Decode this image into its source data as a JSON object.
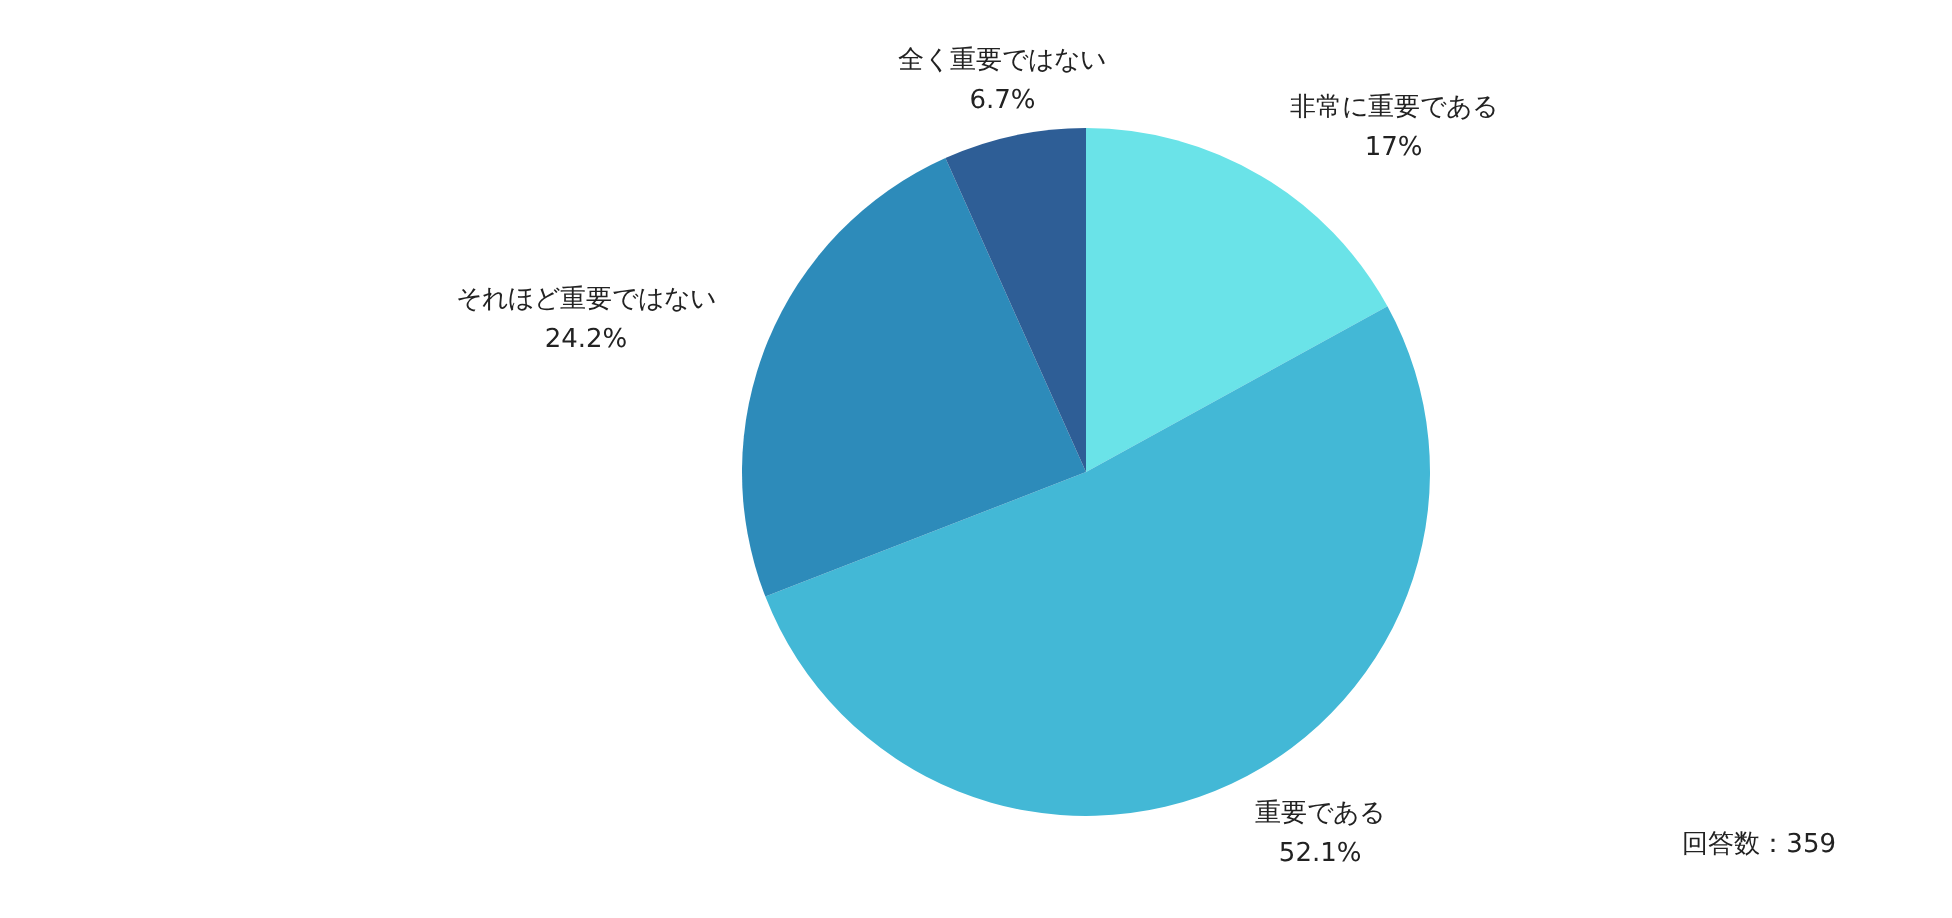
{
  "chart_data": {
    "type": "pie",
    "categories": [
      "非常に重要である",
      "重要である",
      "それほど重要ではない",
      "全く重要ではない"
    ],
    "values": [
      17,
      52.1,
      24.2,
      6.7
    ],
    "value_labels": [
      "17%",
      "52.1%",
      "24.2%",
      "6.7%"
    ],
    "colors": [
      "#6ae3e8",
      "#43b8d6",
      "#2d8bba",
      "#2e5e96"
    ],
    "legend": false,
    "annotations": [
      "回答数：359"
    ]
  }
}
